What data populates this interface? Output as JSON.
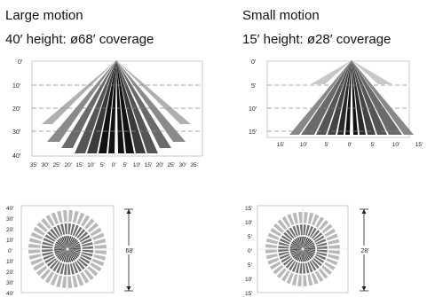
{
  "large": {
    "title": "Large motion",
    "subtitle": "40′ height: ø68′ coverage",
    "side": {
      "y_ticks": [
        "0′",
        "10′",
        "20′",
        "30′",
        "40′"
      ],
      "x_ticks": [
        "35′",
        "30′",
        "25′",
        "20′",
        "15′",
        "10′",
        "5′",
        "0′",
        "5′",
        "10′",
        "15′",
        "20′",
        "25′",
        "30′",
        "35′"
      ]
    },
    "top": {
      "y_ticks": [
        "40′",
        "30′",
        "20′",
        "10′",
        "0′",
        "10′",
        "20′",
        "30′",
        "40′"
      ],
      "dimension": "68′"
    }
  },
  "small": {
    "title": "Small motion",
    "subtitle": "15′ height: ø28′ coverage",
    "side": {
      "y_ticks": [
        "0′",
        "5′",
        "10′",
        "15′"
      ],
      "x_ticks": [
        "15′",
        "10′",
        "5′",
        "0′",
        "5′",
        "10′",
        "15′"
      ]
    },
    "top": {
      "y_ticks": [
        "15′",
        "10′",
        "5′",
        "0′",
        "5′",
        "10′",
        "15′"
      ],
      "dimension": "28′"
    }
  }
}
